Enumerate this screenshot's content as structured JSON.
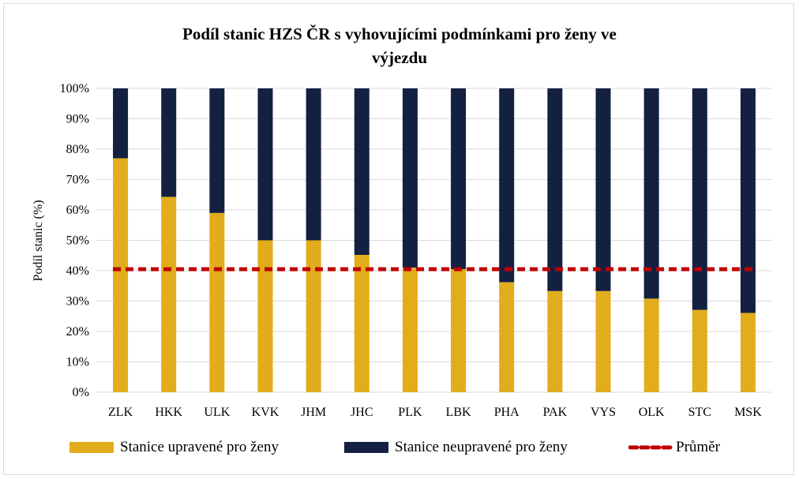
{
  "chart_data": {
    "type": "bar",
    "stacked": true,
    "title": "Podíl stanic HZS ČR s vyhovujícími podmínkami pro ženy ve výjezdu",
    "title_lines": [
      "Podíl stanic HZS ČR s vyhovujícími podmínkami pro ženy ve",
      "výjezdu"
    ],
    "ylabel": "Podíl stanic (%)",
    "xlabel": "",
    "ylim": [
      0,
      100
    ],
    "ytick_labels": [
      "0%",
      "10%",
      "20%",
      "30%",
      "40%",
      "50%",
      "60%",
      "70%",
      "80%",
      "90%",
      "100%"
    ],
    "categories": [
      "ZLK",
      "HKK",
      "ULK",
      "KVK",
      "JHM",
      "JHC",
      "PLK",
      "LBK",
      "PHA",
      "PAK",
      "VYS",
      "OLK",
      "STC",
      "MSK"
    ],
    "series": [
      {
        "name": "Stanice upravené pro ženy",
        "color": "#e2ad1c",
        "values": [
          77,
          64.3,
          59,
          50,
          50,
          45.2,
          41,
          40.5,
          36.2,
          33.3,
          33.3,
          30.8,
          27.1,
          26.1
        ]
      },
      {
        "name": "Stanice neupravené pro ženy",
        "color": "#142042",
        "values": [
          23,
          35.7,
          41,
          50,
          50,
          54.8,
          59,
          59.5,
          63.8,
          66.7,
          66.7,
          69.2,
          72.9,
          73.9
        ]
      }
    ],
    "average": {
      "name": "Průměr",
      "value": 40.5,
      "color": "#c00000",
      "style": "dashed"
    },
    "grid": true,
    "legend_position": "bottom"
  }
}
